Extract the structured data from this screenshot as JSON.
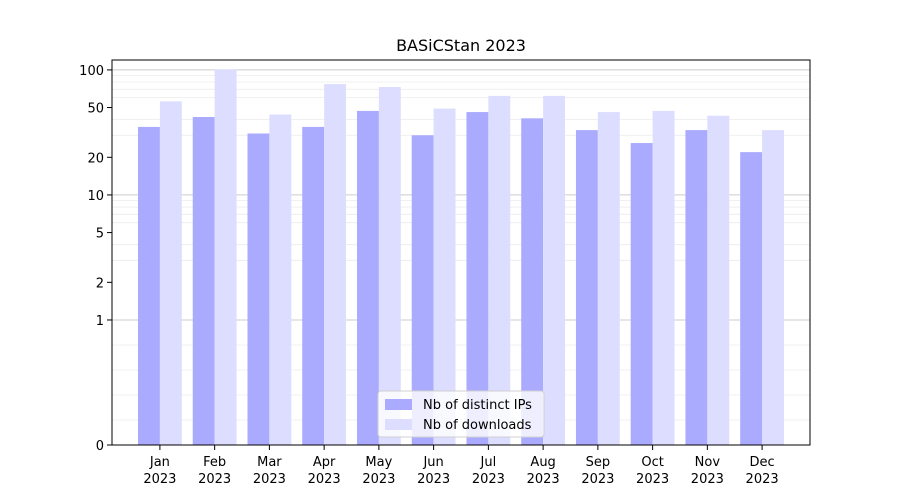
{
  "chart_data": {
    "type": "bar",
    "title": "BASiCStan 2023",
    "xlabel": "",
    "ylabel": "",
    "yscale": "symlog",
    "ylim": [
      0,
      120
    ],
    "grid": true,
    "legend_position": "bottom-center",
    "categories": [
      "Jan\n2023",
      "Feb\n2023",
      "Mar\n2023",
      "Apr\n2023",
      "May\n2023",
      "Jun\n2023",
      "Jul\n2023",
      "Aug\n2023",
      "Sep\n2023",
      "Oct\n2023",
      "Nov\n2023",
      "Dec\n2023"
    ],
    "y_ticks": [
      0,
      1,
      2,
      5,
      10,
      20,
      50,
      100
    ],
    "series": [
      {
        "name": "Nb of distinct IPs",
        "color": "#aaaaff",
        "values": [
          35,
          42,
          31,
          35,
          47,
          30,
          46,
          41,
          33,
          26,
          33,
          22
        ]
      },
      {
        "name": "Nb of downloads",
        "color": "#ddddff",
        "values": [
          56,
          101,
          44,
          77,
          73,
          49,
          62,
          62,
          46,
          47,
          43,
          33
        ]
      }
    ]
  }
}
